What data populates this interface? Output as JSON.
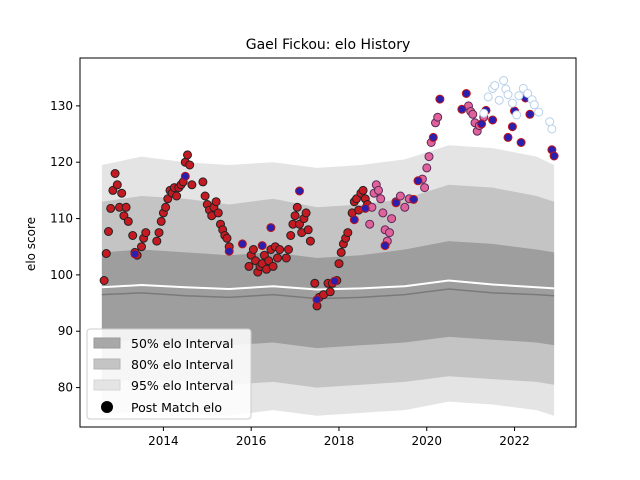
{
  "chart_data": {
    "type": "scatter",
    "title": "Gael Fickou: elo History",
    "xlabel": "",
    "ylabel": "elo score",
    "xlim": [
      2012.1,
      2023.4
    ],
    "ylim": [
      73,
      138.5
    ],
    "x_ticks": [
      2014,
      2016,
      2018,
      2020,
      2022
    ],
    "x_tick_labels": [
      "2014",
      "2016",
      "2018",
      "2020",
      "2022"
    ],
    "y_ticks": [
      80,
      90,
      100,
      110,
      120,
      130
    ],
    "y_tick_labels": [
      "80",
      "90",
      "100",
      "110",
      "120",
      "130"
    ],
    "grid": false,
    "legend": {
      "placement": "lower-left",
      "entries": [
        "50% elo Interval",
        "80% elo Interval",
        "95% elo Interval",
        "Post Match elo"
      ]
    },
    "colors": {
      "band_50": "#9e9e9e",
      "band_80": "#c4c4c4",
      "band_95": "#e4e4e4",
      "median_line": "#7a7a7a",
      "mean_line": "#ffffff"
    },
    "bands": {
      "x": [
        2012.6,
        2013.5,
        2014.5,
        2015.5,
        2016.5,
        2017.5,
        2018.5,
        2019.5,
        2020.5,
        2021.5,
        2022.5,
        2022.9
      ],
      "p95_upper": [
        119.5,
        121,
        120,
        119.5,
        120,
        119,
        119.5,
        120.5,
        123,
        122.5,
        121,
        119.5
      ],
      "p80_upper": [
        113,
        114,
        113.5,
        112.5,
        113.5,
        112,
        112.5,
        113.5,
        116,
        115.5,
        114,
        113
      ],
      "p50_upper": [
        104,
        104.5,
        104,
        103.5,
        104,
        103,
        103.5,
        104.5,
        106,
        105.5,
        104.5,
        104
      ],
      "median": [
        96.5,
        96.8,
        96.3,
        96,
        96.5,
        95.8,
        96,
        96.5,
        97.5,
        96.8,
        96.5,
        96.3
      ],
      "mean": [
        97.8,
        98.2,
        97.8,
        97.5,
        98,
        97.4,
        97.6,
        98,
        99,
        98.3,
        97.8,
        97.6
      ],
      "p50_lower": [
        88,
        88.5,
        88,
        87.5,
        88,
        87,
        87.5,
        88,
        89,
        88.5,
        88,
        87.5
      ],
      "p80_lower": [
        81,
        81.5,
        81,
        80.5,
        81,
        80,
        80.5,
        81,
        82,
        81.5,
        81,
        80.5
      ],
      "p95_lower": [
        75,
        76,
        75.5,
        75,
        76,
        75,
        75.5,
        76,
        77.5,
        77,
        76,
        75
      ]
    },
    "series": [
      {
        "fill": "#c61a23",
        "edge": "#222222",
        "points": [
          [
            2012.65,
            99
          ],
          [
            2012.7,
            103.8
          ],
          [
            2012.75,
            107.7
          ],
          [
            2012.8,
            111.8
          ],
          [
            2012.85,
            115
          ],
          [
            2012.9,
            118
          ],
          [
            2012.95,
            116
          ],
          [
            2013.0,
            112
          ],
          [
            2013.05,
            114.5
          ],
          [
            2013.1,
            110.5
          ],
          [
            2013.15,
            112
          ],
          [
            2013.2,
            109.5
          ],
          [
            2013.3,
            107
          ],
          [
            2013.35,
            104
          ],
          [
            2013.4,
            103.5
          ],
          [
            2013.5,
            105
          ],
          [
            2013.55,
            106.5
          ],
          [
            2013.6,
            107.5
          ],
          [
            2013.85,
            106
          ],
          [
            2013.9,
            107.5
          ],
          [
            2013.95,
            109.5
          ],
          [
            2014.0,
            111
          ],
          [
            2014.05,
            112
          ],
          [
            2014.1,
            113.5
          ],
          [
            2014.15,
            115
          ],
          [
            2014.2,
            114.5
          ],
          [
            2014.25,
            115.5
          ],
          [
            2014.3,
            114
          ],
          [
            2014.35,
            115.5
          ],
          [
            2014.4,
            116
          ],
          [
            2014.45,
            116.5
          ],
          [
            2014.5,
            120
          ],
          [
            2014.55,
            121.3
          ],
          [
            2014.6,
            119.5
          ],
          [
            2014.65,
            116
          ],
          [
            2014.9,
            116.5
          ],
          [
            2014.95,
            114
          ],
          [
            2015.0,
            112.5
          ],
          [
            2015.05,
            111.5
          ],
          [
            2015.1,
            110.5
          ],
          [
            2015.15,
            112
          ],
          [
            2015.2,
            113
          ],
          [
            2015.25,
            111
          ],
          [
            2015.3,
            109
          ],
          [
            2015.35,
            108
          ],
          [
            2015.4,
            107
          ],
          [
            2015.45,
            106.5
          ],
          [
            2015.5,
            105
          ],
          [
            2015.95,
            101.5
          ],
          [
            2016.0,
            103.5
          ],
          [
            2016.05,
            104.5
          ],
          [
            2016.1,
            102.5
          ],
          [
            2016.15,
            100.5
          ],
          [
            2016.2,
            101.5
          ],
          [
            2016.25,
            102
          ],
          [
            2016.3,
            103.5
          ],
          [
            2016.35,
            101
          ],
          [
            2016.4,
            102.5
          ],
          [
            2016.45,
            104.5
          ],
          [
            2016.5,
            101.5
          ],
          [
            2016.55,
            105
          ],
          [
            2016.6,
            103
          ],
          [
            2016.65,
            104.5
          ],
          [
            2016.8,
            103
          ],
          [
            2016.85,
            104.5
          ],
          [
            2016.9,
            107
          ],
          [
            2016.95,
            109
          ],
          [
            2017.0,
            110.5
          ],
          [
            2017.05,
            112
          ],
          [
            2017.1,
            109
          ],
          [
            2017.15,
            107.5
          ],
          [
            2017.2,
            110
          ],
          [
            2017.25,
            111
          ],
          [
            2017.3,
            108
          ],
          [
            2017.35,
            106
          ],
          [
            2017.45,
            98.5
          ],
          [
            2017.5,
            94.5
          ],
          [
            2017.55,
            96
          ],
          [
            2017.65,
            96.5
          ],
          [
            2017.75,
            98.5
          ],
          [
            2017.8,
            97
          ],
          [
            2017.85,
            98.5
          ],
          [
            2017.95,
            99
          ],
          [
            2018.0,
            102
          ],
          [
            2018.05,
            104
          ],
          [
            2018.1,
            105.5
          ],
          [
            2018.15,
            106.5
          ],
          [
            2018.2,
            107.5
          ],
          [
            2018.3,
            111
          ],
          [
            2018.35,
            113
          ],
          [
            2018.4,
            113.5
          ],
          [
            2018.45,
            111.5
          ],
          [
            2018.5,
            114.5
          ],
          [
            2018.55,
            115
          ],
          [
            2018.6,
            113.5
          ],
          [
            2018.65,
            112.5
          ]
        ]
      },
      {
        "fill": "#e0629a",
        "edge": "#5a2a5a",
        "points": [
          [
            2018.7,
            109
          ],
          [
            2018.75,
            112
          ],
          [
            2018.8,
            114.5
          ],
          [
            2018.85,
            116
          ],
          [
            2018.9,
            115
          ],
          [
            2018.95,
            113.5
          ],
          [
            2019.0,
            111
          ],
          [
            2019.05,
            108
          ],
          [
            2019.1,
            106
          ],
          [
            2019.15,
            107.5
          ],
          [
            2019.2,
            110
          ],
          [
            2019.3,
            113
          ],
          [
            2019.4,
            114
          ],
          [
            2019.5,
            112
          ],
          [
            2019.6,
            113.5
          ],
          [
            2019.9,
            117
          ],
          [
            2019.95,
            115.5
          ],
          [
            2020.0,
            119
          ],
          [
            2020.05,
            121
          ],
          [
            2020.1,
            123.5
          ],
          [
            2020.2,
            127
          ],
          [
            2020.25,
            128
          ],
          [
            2020.95,
            130
          ],
          [
            2021.0,
            129
          ],
          [
            2021.05,
            128.5
          ],
          [
            2021.1,
            127
          ],
          [
            2021.15,
            125.5
          ],
          [
            2021.2,
            126.5
          ],
          [
            2021.3,
            128
          ]
        ]
      },
      {
        "fill": "#2a1fae",
        "edge": "#c01818",
        "points": [
          [
            2013.35,
            103.7
          ],
          [
            2014.5,
            117.5
          ],
          [
            2015.5,
            104.2
          ],
          [
            2015.8,
            105.5
          ],
          [
            2016.25,
            105.2
          ],
          [
            2016.45,
            108.4
          ],
          [
            2017.1,
            114.9
          ],
          [
            2017.5,
            95.6
          ],
          [
            2017.9,
            98.9
          ],
          [
            2018.35,
            109.8
          ],
          [
            2018.6,
            111.8
          ],
          [
            2019.05,
            105.2
          ],
          [
            2019.3,
            112.8
          ],
          [
            2019.7,
            113.4
          ],
          [
            2019.8,
            116.7
          ],
          [
            2020.15,
            124.4
          ],
          [
            2020.3,
            131.2
          ],
          [
            2020.8,
            129.4
          ],
          [
            2020.9,
            132.2
          ],
          [
            2021.25,
            126.8
          ],
          [
            2021.35,
            129.2
          ],
          [
            2021.5,
            127.5
          ],
          [
            2021.85,
            124.4
          ],
          [
            2021.95,
            126.3
          ],
          [
            2022.0,
            129.1
          ],
          [
            2022.15,
            123.5
          ],
          [
            2022.25,
            131.4
          ],
          [
            2022.35,
            128.5
          ],
          [
            2022.85,
            122.2
          ],
          [
            2022.9,
            121.1
          ]
        ]
      },
      {
        "fill": "#ffffff",
        "edge": "#b8d0ea",
        "points": [
          [
            2021.3,
            128.7
          ],
          [
            2021.4,
            131.6
          ],
          [
            2021.5,
            133.1
          ],
          [
            2021.55,
            133.6
          ],
          [
            2021.65,
            131
          ],
          [
            2021.75,
            134.5
          ],
          [
            2021.8,
            133
          ],
          [
            2021.85,
            132
          ],
          [
            2021.95,
            130.5
          ],
          [
            2022.05,
            128.4
          ],
          [
            2022.1,
            131.8
          ],
          [
            2022.2,
            133.1
          ],
          [
            2022.3,
            132.2
          ],
          [
            2022.4,
            131.1
          ],
          [
            2022.45,
            130.2
          ],
          [
            2022.55,
            128.9
          ],
          [
            2022.8,
            127.2
          ],
          [
            2022.85,
            125.9
          ]
        ]
      }
    ]
  }
}
